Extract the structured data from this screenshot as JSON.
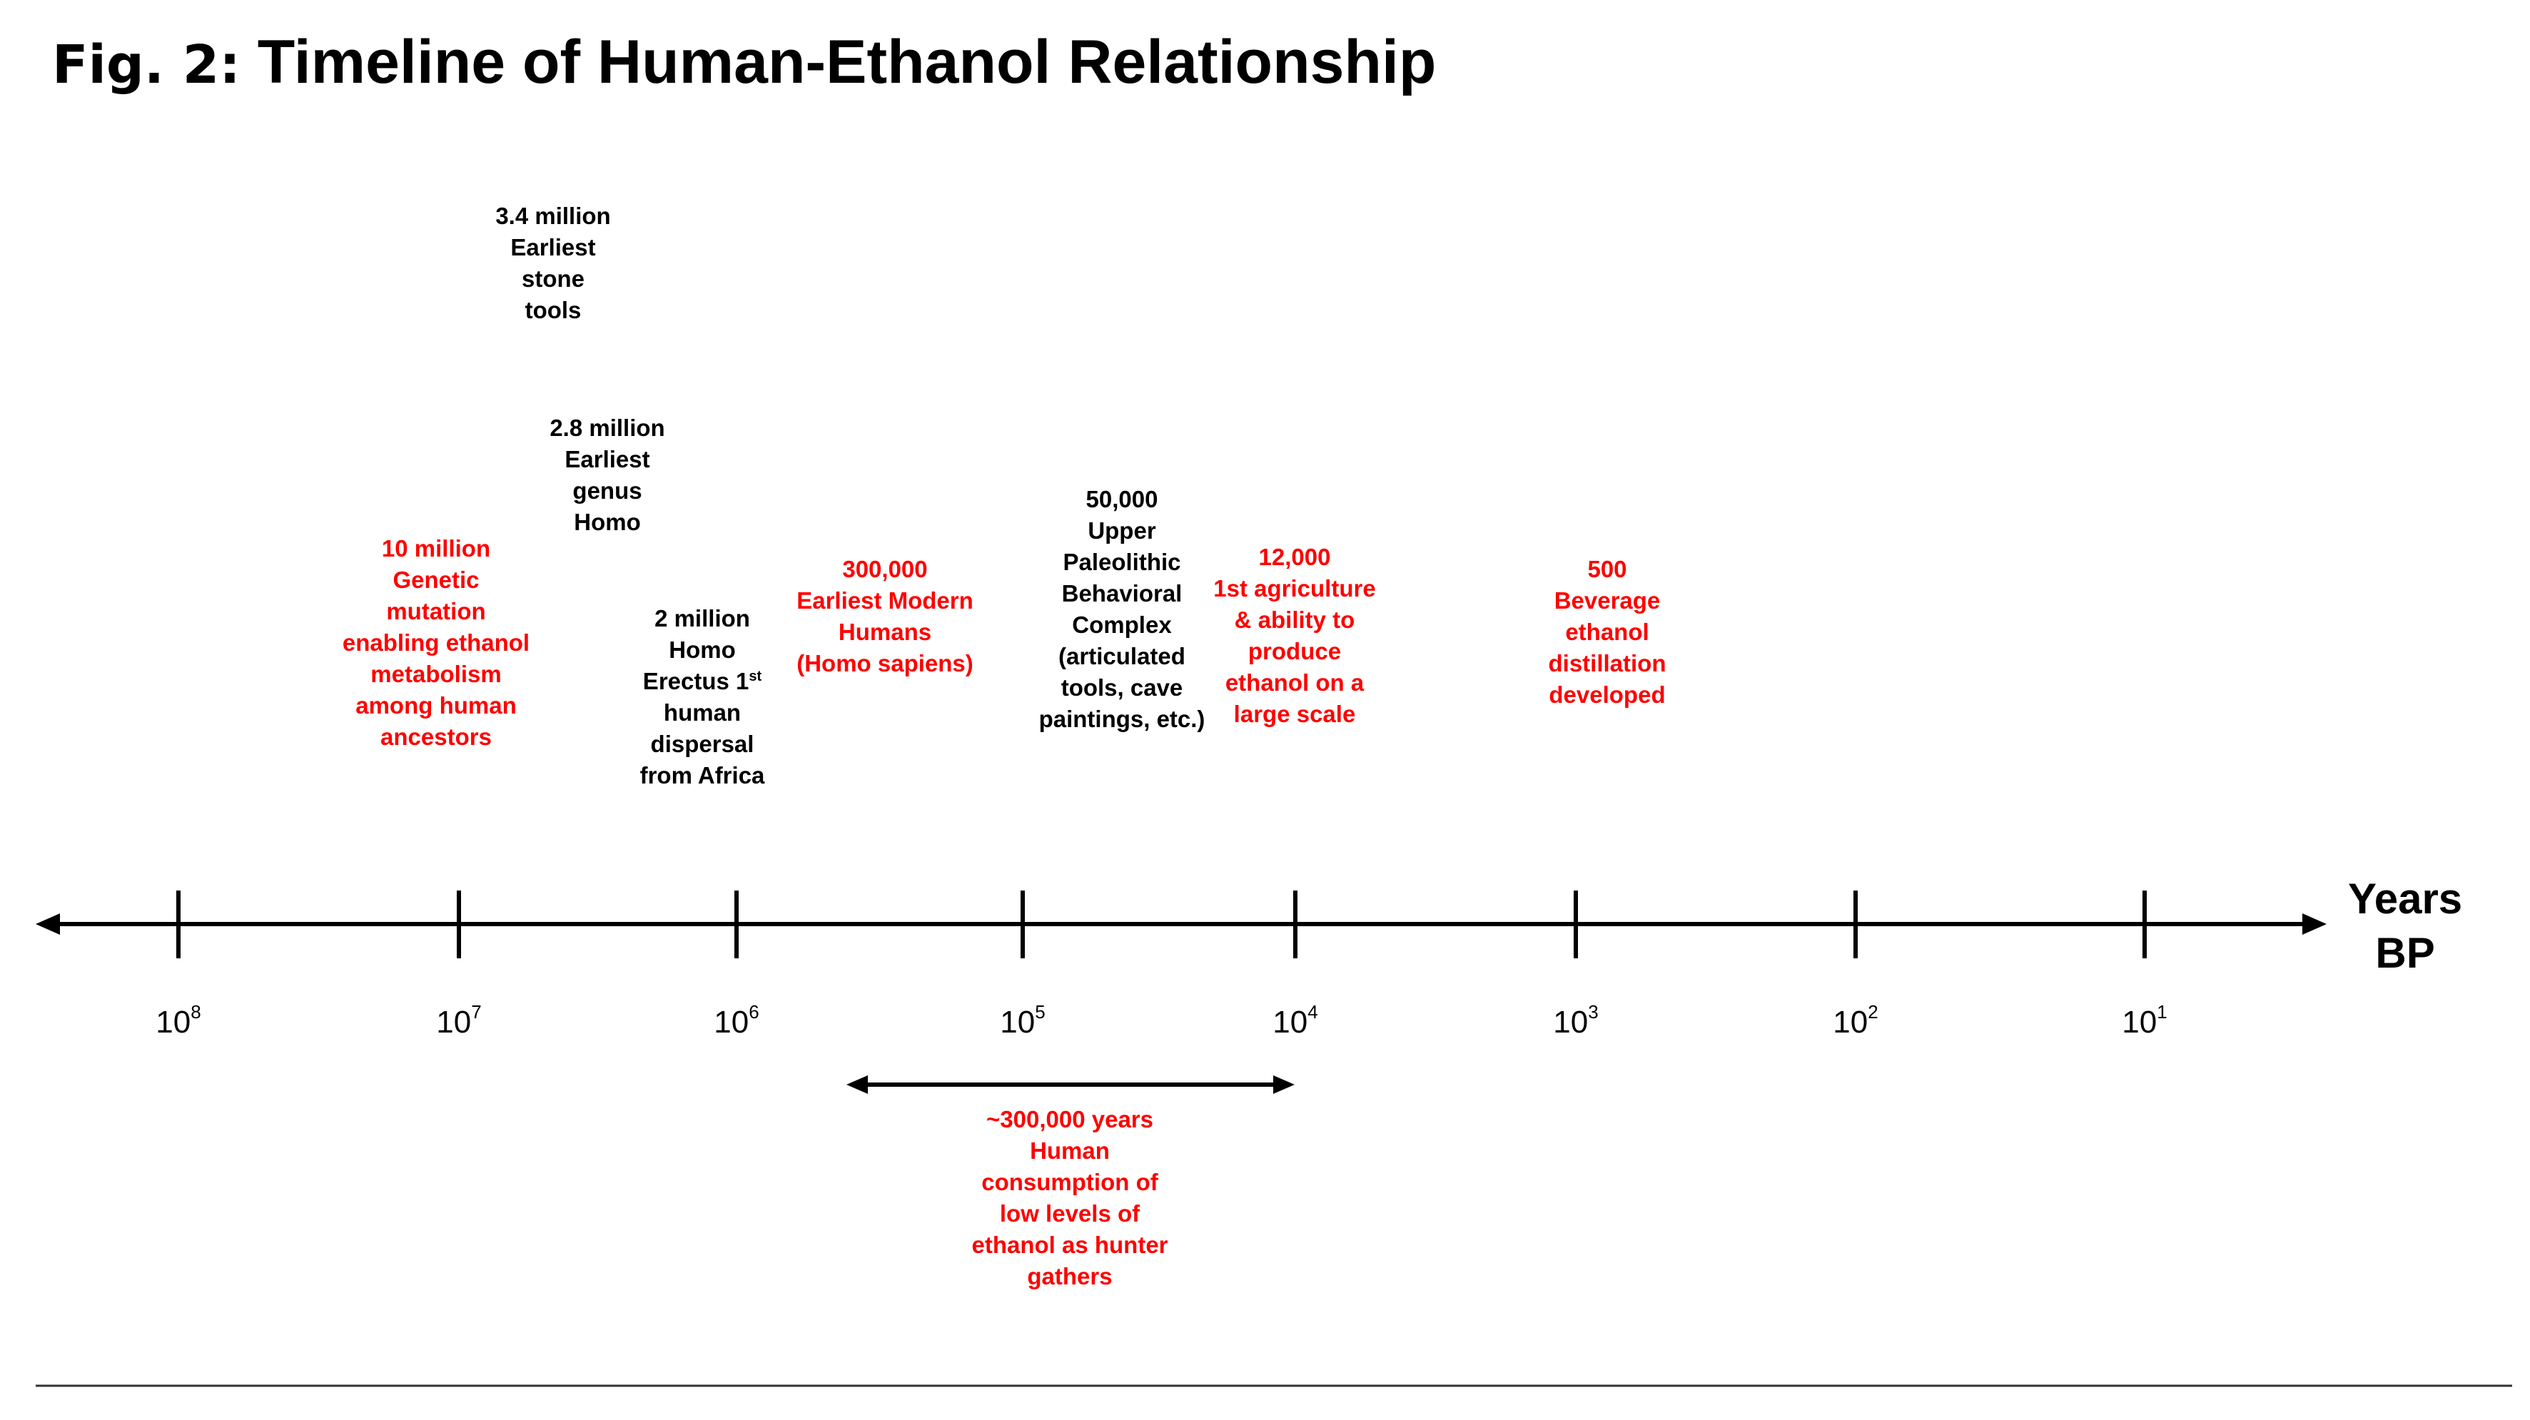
{
  "title_prefix": "Fig. 2:",
  "title_main": "Timeline of Human-Ethanol Relationship",
  "axis": {
    "label_line1": "Years",
    "label_line2": "BP",
    "scale": "log",
    "direction": "reverse",
    "ticks": [
      {
        "base": "10",
        "exp": "8"
      },
      {
        "base": "10",
        "exp": "7"
      },
      {
        "base": "10",
        "exp": "6"
      },
      {
        "base": "10",
        "exp": "5"
      },
      {
        "base": "10",
        "exp": "4"
      },
      {
        "base": "10",
        "exp": "3"
      },
      {
        "base": "10",
        "exp": "2"
      },
      {
        "base": "10",
        "exp": "1"
      }
    ]
  },
  "events": {
    "stone_tools": {
      "color": "#000000",
      "lines": [
        "3.4 million",
        "Earliest",
        "stone",
        "tools"
      ]
    },
    "genus_homo": {
      "color": "#000000",
      "lines": [
        "2.8 million",
        "Earliest",
        "genus",
        "Homo"
      ]
    },
    "genetic_mutation": {
      "color": "#ff0000",
      "lines": [
        "10 million",
        "Genetic",
        "mutation",
        "enabling ethanol",
        "metabolism",
        "among human",
        "ancestors"
      ]
    },
    "homo_erectus": {
      "color": "#000000",
      "lines": [
        "2 million",
        "Homo",
        "Erectus 1",
        "human",
        "dispersal",
        "from Africa"
      ],
      "superscript": "st"
    },
    "modern_humans": {
      "color": "#ff0000",
      "lines": [
        "300,000",
        "Earliest Modern",
        "Humans",
        "(Homo sapiens)"
      ]
    },
    "upper_paleolithic": {
      "color": "#000000",
      "lines": [
        "50,000",
        "Upper",
        "Paleolithic",
        "Behavioral",
        "Complex",
        "(articulated",
        "tools, cave",
        "paintings, etc.)"
      ]
    },
    "agriculture": {
      "color": "#ff0000",
      "lines": [
        "12,000",
        "1st agriculture",
        "& ability to",
        "produce",
        "ethanol on a",
        "large scale"
      ]
    },
    "distillation": {
      "color": "#ff0000",
      "lines": [
        "500",
        "Beverage",
        "ethanol",
        "distillation",
        "developed"
      ]
    }
  },
  "range_annotation": {
    "from_years": 300000,
    "to_years": 10000,
    "color": "#ff0000",
    "lines": [
      "~300,000 years",
      "Human",
      "consumption of",
      "low levels of",
      "ethanol as hunter",
      "gathers"
    ]
  }
}
